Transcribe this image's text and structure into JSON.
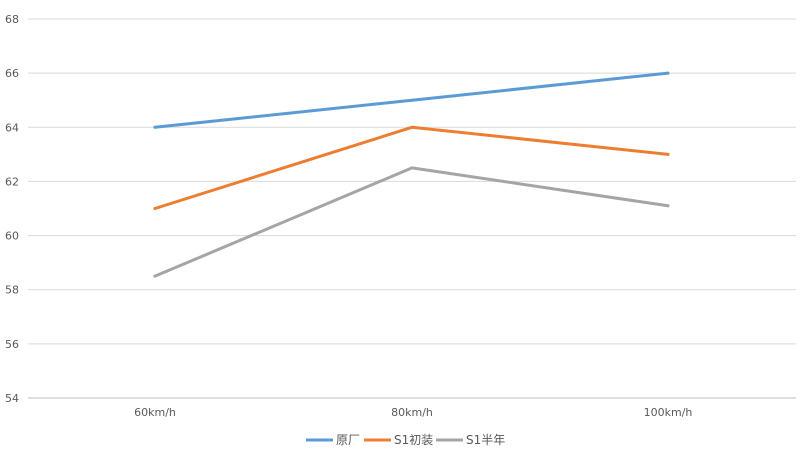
{
  "chart_data": {
    "type": "line",
    "categories": [
      "60km/h",
      "80km/h",
      "100km/h"
    ],
    "series": [
      {
        "name": "原厂",
        "color": "#5b9bd5",
        "values": [
          64,
          65,
          66
        ]
      },
      {
        "name": "S1初装",
        "color": "#ed7d31",
        "values": [
          61,
          64,
          63
        ]
      },
      {
        "name": "S1半年",
        "color": "#a5a5a5",
        "values": [
          58.5,
          62.5,
          61.1
        ]
      }
    ],
    "yticks": [
      54,
      56,
      58,
      60,
      62,
      64,
      66,
      68
    ],
    "ylim": [
      54,
      68
    ],
    "grid": true,
    "legend": "bottom"
  }
}
